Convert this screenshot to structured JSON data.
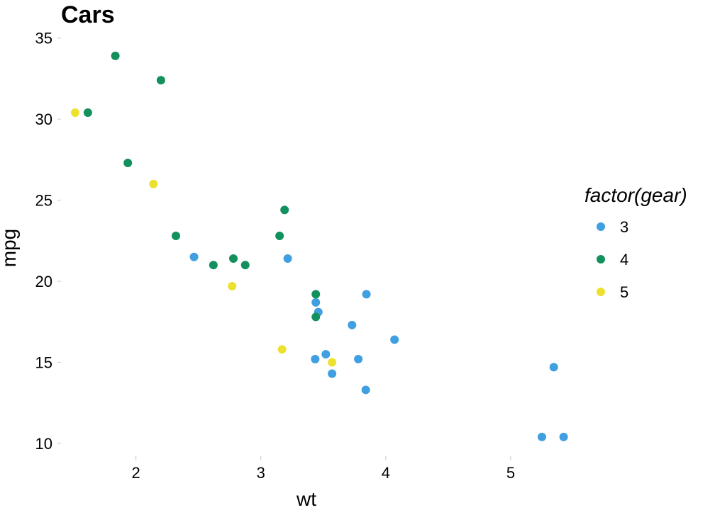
{
  "chart_data": {
    "type": "scatter",
    "title": "Cars",
    "xlabel": "wt",
    "ylabel": "mpg",
    "xlim": [
      1.4,
      5.5
    ],
    "ylim": [
      9.3,
      35.6
    ],
    "x_ticks": [
      2,
      3,
      4,
      5
    ],
    "y_ticks": [
      10,
      15,
      20,
      25,
      30,
      35
    ],
    "grid": false,
    "legend": {
      "title": "factor(gear)",
      "placement": "right",
      "entries": [
        "3",
        "4",
        "5"
      ]
    },
    "series": [
      {
        "name": "3",
        "color": "#3f9fe0",
        "points": [
          [
            3.215,
            21.4
          ],
          [
            3.44,
            18.7
          ],
          [
            3.46,
            18.1
          ],
          [
            3.57,
            14.3
          ],
          [
            4.07,
            16.4
          ],
          [
            3.73,
            17.3
          ],
          [
            3.78,
            15.2
          ],
          [
            5.25,
            10.4
          ],
          [
            5.424,
            10.4
          ],
          [
            5.345,
            14.7
          ],
          [
            2.465,
            21.5
          ],
          [
            3.52,
            15.5
          ],
          [
            3.435,
            15.2
          ],
          [
            3.84,
            13.3
          ],
          [
            3.845,
            19.2
          ]
        ]
      },
      {
        "name": "4",
        "color": "#12905e",
        "points": [
          [
            2.62,
            21.0
          ],
          [
            2.875,
            21.0
          ],
          [
            2.32,
            22.8
          ],
          [
            3.19,
            24.4
          ],
          [
            3.15,
            22.8
          ],
          [
            3.44,
            19.2
          ],
          [
            3.44,
            17.8
          ],
          [
            2.2,
            32.4
          ],
          [
            1.615,
            30.4
          ],
          [
            1.835,
            33.9
          ],
          [
            1.935,
            27.3
          ],
          [
            2.78,
            21.4
          ]
        ]
      },
      {
        "name": "5",
        "color": "#ede130",
        "points": [
          [
            2.14,
            26.0
          ],
          [
            1.513,
            30.4
          ],
          [
            3.17,
            15.8
          ],
          [
            2.77,
            19.7
          ],
          [
            3.57,
            15.0
          ]
        ]
      }
    ]
  }
}
